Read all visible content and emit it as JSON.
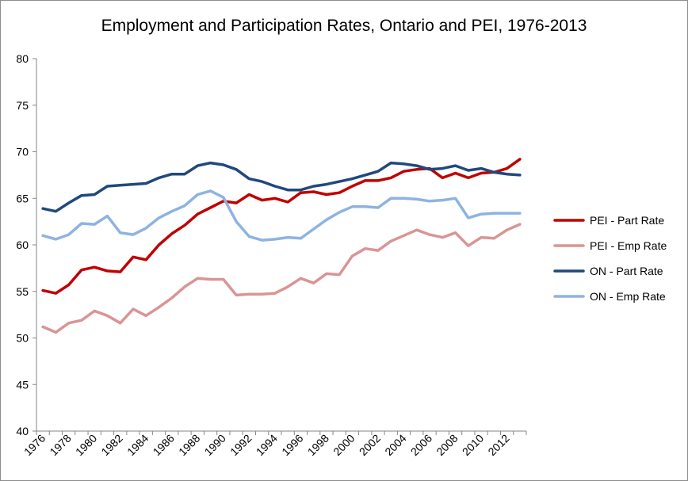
{
  "chart_data": {
    "type": "line",
    "title": "Employment and Participation Rates, Ontario and PEI, 1976-2013",
    "xlabel": "",
    "ylabel": "",
    "ylim": [
      40,
      80
    ],
    "yticks": [
      40,
      45,
      50,
      55,
      60,
      65,
      70,
      75,
      80
    ],
    "x": [
      1976,
      1977,
      1978,
      1979,
      1980,
      1981,
      1982,
      1983,
      1984,
      1985,
      1986,
      1987,
      1988,
      1989,
      1990,
      1991,
      1992,
      1993,
      1994,
      1995,
      1996,
      1997,
      1998,
      1999,
      2000,
      2001,
      2002,
      2003,
      2004,
      2005,
      2006,
      2007,
      2008,
      2009,
      2010,
      2011,
      2012,
      2013
    ],
    "xtick_labels": [
      "1976",
      "1978",
      "1980",
      "1982",
      "1984",
      "1986",
      "1988",
      "1990",
      "1992",
      "1994",
      "1996",
      "1998",
      "2000",
      "2002",
      "2004",
      "2006",
      "2008",
      "2010",
      "2012"
    ],
    "grid": false,
    "legend_position": "right",
    "series": [
      {
        "name": "PEI - Part Rate",
        "color": "#c00000",
        "values": [
          55.1,
          54.8,
          55.7,
          57.3,
          57.6,
          57.2,
          57.1,
          58.7,
          58.4,
          60.0,
          61.2,
          62.1,
          63.3,
          64.0,
          64.7,
          64.5,
          65.4,
          64.8,
          65.0,
          64.6,
          65.6,
          65.7,
          65.4,
          65.6,
          66.3,
          66.9,
          66.9,
          67.2,
          67.9,
          68.1,
          68.2,
          67.2,
          67.7,
          67.2,
          67.7,
          67.8,
          68.2,
          69.2
        ]
      },
      {
        "name": "PEI - Emp Rate",
        "color": "#d99594",
        "values": [
          51.2,
          50.6,
          51.6,
          51.9,
          52.9,
          52.4,
          51.6,
          53.1,
          52.4,
          53.3,
          54.3,
          55.5,
          56.4,
          56.3,
          56.3,
          54.6,
          54.7,
          54.7,
          54.8,
          55.5,
          56.4,
          55.9,
          56.9,
          56.8,
          58.8,
          59.6,
          59.4,
          60.4,
          61.0,
          61.6,
          61.1,
          60.8,
          61.3,
          59.9,
          60.8,
          60.7,
          61.6,
          62.2
        ]
      },
      {
        "name": "ON - Part Rate",
        "color": "#1f497d",
        "values": [
          63.9,
          63.6,
          64.5,
          65.3,
          65.4,
          66.3,
          66.4,
          66.5,
          66.6,
          67.2,
          67.6,
          67.6,
          68.5,
          68.8,
          68.6,
          68.1,
          67.1,
          66.8,
          66.3,
          65.9,
          65.9,
          66.3,
          66.5,
          66.8,
          67.1,
          67.5,
          67.9,
          68.8,
          68.7,
          68.5,
          68.1,
          68.2,
          68.5,
          68.0,
          68.2,
          67.8,
          67.6,
          67.5
        ]
      },
      {
        "name": "ON - Emp Rate",
        "color": "#8db3e2",
        "values": [
          61.0,
          60.6,
          61.1,
          62.3,
          62.2,
          63.1,
          61.3,
          61.1,
          61.8,
          62.9,
          63.6,
          64.2,
          65.4,
          65.8,
          65.1,
          62.5,
          60.9,
          60.5,
          60.6,
          60.8,
          60.7,
          61.7,
          62.7,
          63.5,
          64.1,
          64.1,
          64.0,
          65.0,
          65.0,
          64.9,
          64.7,
          64.8,
          65.0,
          62.9,
          63.3,
          63.4,
          63.4,
          63.4
        ]
      }
    ]
  }
}
